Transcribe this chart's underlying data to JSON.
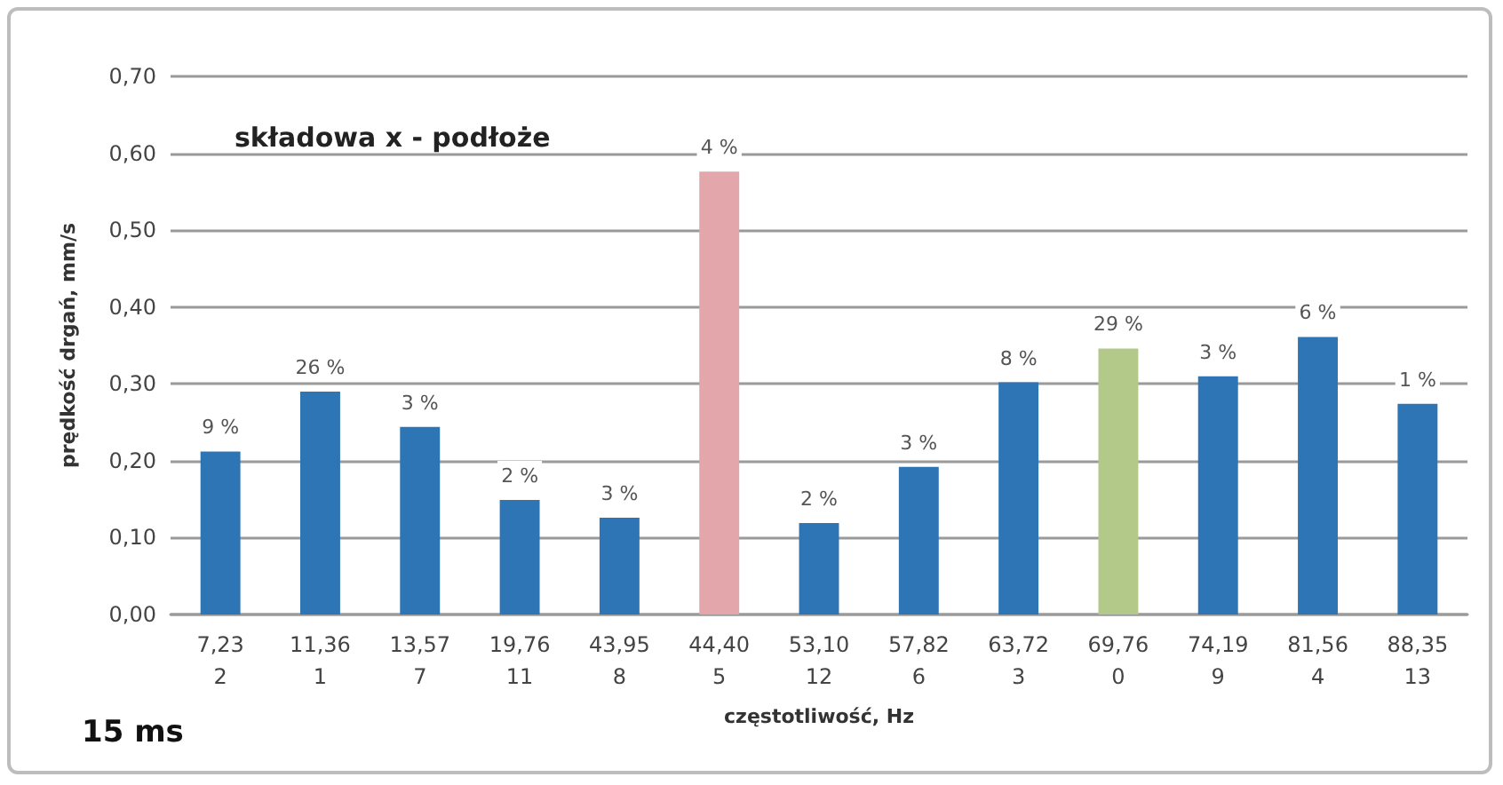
{
  "chart_data": {
    "type": "bar",
    "title": "składowa x - podłoże",
    "xlabel": "częstotliwość, Hz",
    "ylabel": "prędkość drgań, mm/s",
    "annotations": [
      "15 ms",
      {
        "text": "9 %",
        "x": "7,23\n2",
        "y": 0.212
      },
      {
        "text": "26 %",
        "x": "11,36\n1",
        "y": 0.29
      },
      {
        "text": "3 %",
        "x": "13,57\n7",
        "y": 0.244
      },
      {
        "text": "2 %",
        "x": "19,76\n11",
        "y": 0.149
      },
      {
        "text": "3 %",
        "x": "43,95\n8",
        "y": 0.126
      },
      {
        "text": "4 %",
        "x": "44,40\n5",
        "y": 0.576
      },
      {
        "text": "2 %",
        "x": "53,10\n12",
        "y": 0.119
      },
      {
        "text": "3 %",
        "x": "57,82\n6",
        "y": 0.192
      },
      {
        "text": "8 %",
        "x": "63,72\n3",
        "y": 0.302
      },
      {
        "text": "29 %",
        "x": "69,76\n0",
        "y": 0.346
      },
      {
        "text": "3 %",
        "x": "74,19\n9",
        "y": 0.31
      },
      {
        "text": "6 %",
        "x": "81,56\n4",
        "y": 0.361
      },
      {
        "text": "1 %",
        "x": "88,35\n13",
        "y": 0.274
      }
    ],
    "categories": [
      "7,23\n2",
      "11,36\n1",
      "13,57\n7",
      "19,76\n11",
      "43,95\n8",
      "44,40\n5",
      "53,10\n12",
      "57,82\n6",
      "63,72\n3",
      "69,76\n0",
      "74,19\n9",
      "81,56\n4",
      "88,35\n13"
    ],
    "values": [
      0.212,
      0.29,
      0.244,
      0.149,
      0.126,
      0.576,
      0.119,
      0.192,
      0.302,
      0.346,
      0.31,
      0.361,
      0.274
    ],
    "colors": [
      "#2e75b6",
      "#2e75b6",
      "#2e75b6",
      "#2e75b6",
      "#2e75b6",
      "#e3a6aa",
      "#2e75b6",
      "#2e75b6",
      "#2e75b6",
      "#b3c98a",
      "#2e75b6",
      "#2e75b6",
      "#2e75b6"
    ],
    "ylim": [
      0,
      0.7
    ],
    "yticks": [
      {
        "value": 0,
        "label": "0,00"
      },
      {
        "value": 0.1,
        "label": "0,10"
      },
      {
        "value": 0.2,
        "label": "0,20"
      },
      {
        "value": 0.3,
        "label": "0,30"
      },
      {
        "value": 0.4,
        "label": "0,40"
      },
      {
        "value": 0.5,
        "label": "0,50"
      },
      {
        "value": 0.6,
        "label": "0,60"
      },
      {
        "value": 0.7,
        "label": "0,70"
      }
    ],
    "grid": "y"
  }
}
